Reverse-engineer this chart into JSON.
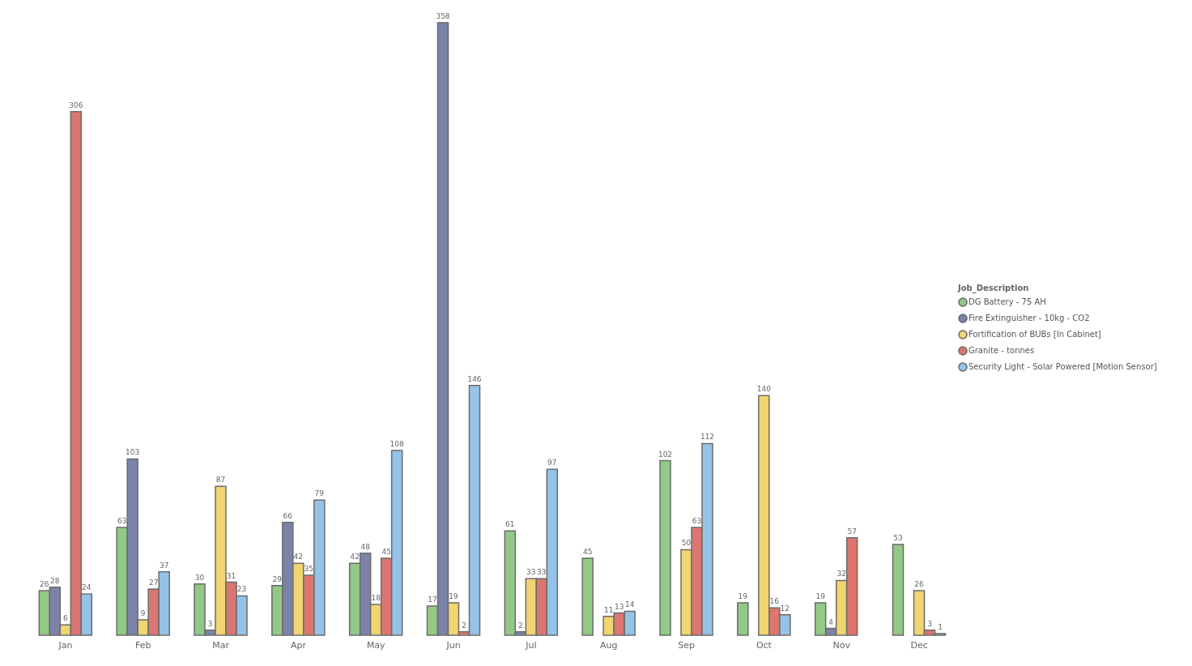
{
  "chart_data": {
    "type": "bar",
    "categories": [
      "Jan",
      "Feb",
      "Mar",
      "Apr",
      "May",
      "Jun",
      "Jul",
      "Aug",
      "Sep",
      "Oct",
      "Nov",
      "Dec"
    ],
    "legend_title": "Job_Description",
    "legend": "right",
    "data_labels": true,
    "series": [
      {
        "name": "DG Battery - 75 AH",
        "color": "#93c986",
        "values": [
          26,
          63,
          30,
          29,
          42,
          17,
          61,
          45,
          102,
          19,
          19,
          53
        ]
      },
      {
        "name": "Fire Extinguisher - 10kg - CO2",
        "color": "#7b83a8",
        "values": [
          28,
          103,
          3,
          66,
          48,
          358,
          2,
          null,
          null,
          null,
          4,
          null
        ]
      },
      {
        "name": "Fortification of BUBs [In Cabinet]",
        "color": "#f0d571",
        "values": [
          6,
          9,
          87,
          42,
          18,
          19,
          33,
          11,
          50,
          140,
          32,
          26
        ]
      },
      {
        "name": "Granite - tonnes",
        "color": "#dc7670",
        "values": [
          306,
          27,
          31,
          35,
          45,
          2,
          33,
          13,
          63,
          16,
          57,
          3
        ]
      },
      {
        "name": "Security Light - Solar Powered [Motion Sensor]",
        "color": "#95c3e8",
        "values": [
          24,
          37,
          23,
          79,
          108,
          146,
          97,
          14,
          112,
          12,
          null,
          1
        ]
      }
    ]
  }
}
